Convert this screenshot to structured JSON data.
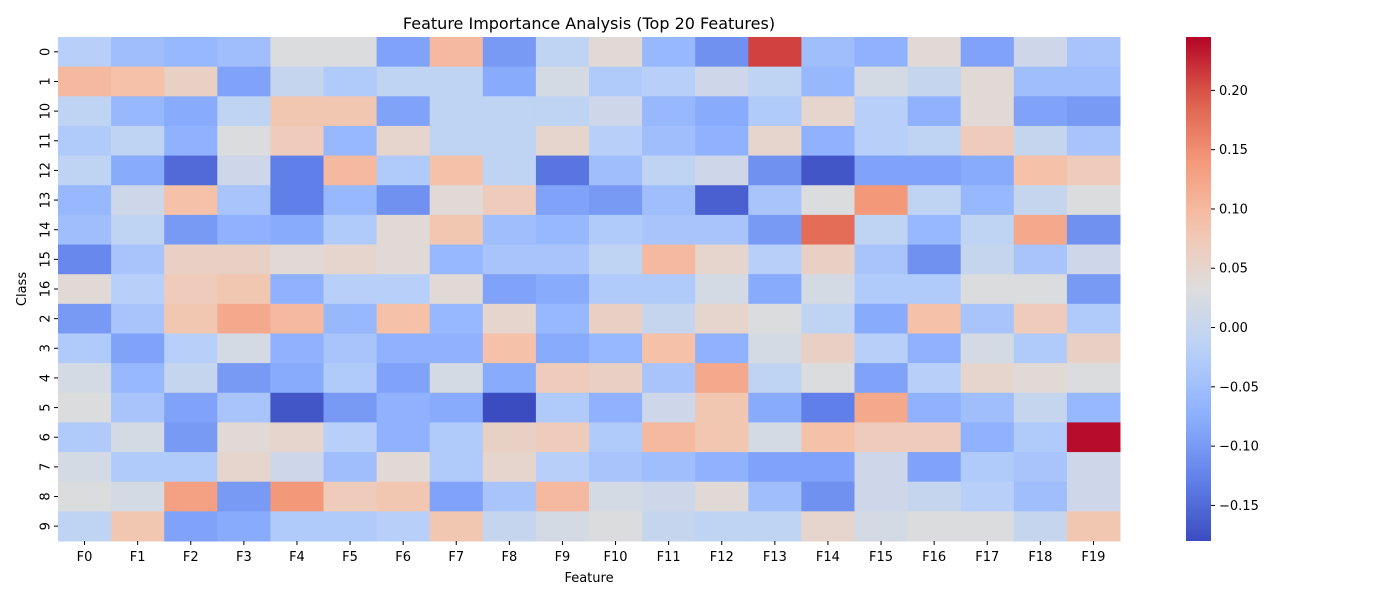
{
  "chart_data": {
    "type": "heatmap",
    "title": "Feature Importance Analysis (Top 20 Features)",
    "xlabel": "Feature",
    "ylabel": "Class",
    "x_categories": [
      "F0",
      "F1",
      "F2",
      "F3",
      "F4",
      "F5",
      "F6",
      "F7",
      "F8",
      "F9",
      "F10",
      "F11",
      "F12",
      "F13",
      "F14",
      "F15",
      "F16",
      "F17",
      "F18",
      "F19"
    ],
    "y_categories": [
      "0",
      "1",
      "10",
      "11",
      "12",
      "13",
      "14",
      "15",
      "16",
      "2",
      "3",
      "4",
      "5",
      "6",
      "7",
      "8",
      "9"
    ],
    "values": [
      [
        -0.02,
        -0.05,
        -0.06,
        -0.05,
        0.03,
        0.03,
        -0.09,
        0.1,
        -0.1,
        -0.01,
        0.04,
        -0.06,
        -0.11,
        0.21,
        -0.05,
        -0.07,
        0.04,
        -0.09,
        0.01,
        -0.04
      ],
      [
        0.1,
        0.09,
        0.06,
        -0.09,
        0.0,
        -0.03,
        -0.01,
        -0.01,
        -0.08,
        0.02,
        -0.03,
        -0.02,
        0.01,
        -0.01,
        -0.06,
        0.02,
        0.0,
        0.04,
        -0.05,
        -0.05
      ],
      [
        -0.01,
        -0.06,
        -0.08,
        -0.01,
        0.08,
        0.08,
        -0.09,
        -0.01,
        -0.01,
        -0.01,
        0.01,
        -0.06,
        -0.08,
        -0.03,
        0.05,
        -0.02,
        -0.07,
        0.04,
        -0.09,
        -0.1
      ],
      [
        -0.03,
        -0.01,
        -0.07,
        0.03,
        0.07,
        -0.06,
        0.05,
        -0.01,
        -0.01,
        0.05,
        -0.02,
        -0.05,
        -0.07,
        0.05,
        -0.07,
        -0.02,
        -0.01,
        0.07,
        0.0,
        -0.04
      ],
      [
        -0.01,
        -0.08,
        -0.15,
        0.01,
        -0.13,
        0.1,
        -0.03,
        0.09,
        -0.01,
        -0.14,
        -0.05,
        -0.01,
        0.01,
        -0.11,
        -0.17,
        -0.09,
        -0.09,
        -0.08,
        0.09,
        0.07
      ],
      [
        -0.06,
        0.01,
        0.09,
        -0.04,
        -0.13,
        -0.06,
        -0.11,
        0.04,
        0.07,
        -0.09,
        -0.1,
        -0.05,
        -0.16,
        -0.04,
        0.03,
        0.14,
        -0.01,
        -0.06,
        0.0,
        0.03
      ],
      [
        -0.05,
        -0.01,
        -0.1,
        -0.07,
        -0.08,
        -0.03,
        0.04,
        0.08,
        -0.05,
        -0.06,
        -0.03,
        -0.04,
        -0.04,
        -0.1,
        0.18,
        -0.01,
        -0.06,
        -0.01,
        0.12,
        -0.11
      ],
      [
        -0.12,
        -0.04,
        0.06,
        0.06,
        0.04,
        0.05,
        0.04,
        -0.06,
        -0.04,
        -0.04,
        -0.01,
        0.1,
        0.05,
        -0.02,
        0.06,
        -0.04,
        -0.11,
        0.0,
        -0.04,
        0.01
      ],
      [
        0.04,
        -0.02,
        0.07,
        0.08,
        -0.07,
        -0.02,
        -0.02,
        0.04,
        -0.09,
        -0.08,
        -0.03,
        -0.03,
        0.02,
        -0.08,
        0.02,
        -0.03,
        -0.03,
        0.03,
        0.03,
        -0.1
      ],
      [
        -0.1,
        -0.04,
        0.08,
        0.12,
        0.1,
        -0.06,
        0.09,
        -0.06,
        0.05,
        -0.06,
        0.06,
        0.0,
        0.05,
        0.03,
        -0.01,
        -0.08,
        0.09,
        -0.04,
        0.07,
        -0.03
      ],
      [
        -0.03,
        -0.09,
        -0.02,
        0.02,
        -0.07,
        -0.04,
        -0.07,
        -0.07,
        0.09,
        -0.08,
        -0.06,
        0.09,
        -0.07,
        0.02,
        0.06,
        -0.02,
        -0.07,
        0.02,
        -0.03,
        0.06
      ],
      [
        0.02,
        -0.06,
        0.0,
        -0.1,
        -0.08,
        -0.03,
        -0.09,
        0.02,
        -0.08,
        0.07,
        0.06,
        -0.04,
        0.12,
        -0.01,
        0.03,
        -0.09,
        -0.02,
        0.05,
        0.04,
        0.03
      ],
      [
        0.03,
        -0.04,
        -0.09,
        -0.04,
        -0.17,
        -0.1,
        -0.07,
        -0.08,
        -0.18,
        -0.03,
        -0.07,
        0.01,
        0.08,
        -0.08,
        -0.13,
        0.12,
        -0.07,
        -0.05,
        0.0,
        -0.06
      ],
      [
        -0.03,
        0.02,
        -0.1,
        0.04,
        0.05,
        -0.02,
        -0.07,
        -0.03,
        0.06,
        0.07,
        -0.03,
        0.1,
        0.08,
        0.02,
        0.09,
        0.07,
        0.07,
        -0.07,
        -0.03,
        0.24
      ],
      [
        0.02,
        -0.03,
        -0.03,
        0.05,
        0.01,
        -0.05,
        0.04,
        -0.03,
        0.05,
        -0.02,
        -0.04,
        -0.05,
        -0.07,
        -0.09,
        -0.09,
        0.01,
        -0.09,
        -0.03,
        -0.04,
        0.01
      ],
      [
        0.03,
        0.02,
        0.13,
        -0.1,
        0.14,
        0.07,
        0.08,
        -0.09,
        -0.04,
        0.1,
        0.02,
        0.01,
        0.04,
        -0.05,
        -0.11,
        0.01,
        0.0,
        -0.02,
        -0.05,
        0.01
      ],
      [
        -0.01,
        0.08,
        -0.09,
        -0.08,
        -0.03,
        -0.03,
        -0.02,
        0.08,
        0.0,
        0.02,
        0.03,
        0.0,
        -0.01,
        -0.01,
        0.05,
        0.02,
        0.03,
        0.03,
        0.0,
        0.08
      ]
    ],
    "colorbar": {
      "vmin": -0.18,
      "vmax": 0.245,
      "ticks": [
        -0.15,
        -0.1,
        -0.05,
        0.0,
        0.05,
        0.1,
        0.15,
        0.2
      ],
      "tick_labels": [
        "−0.15",
        "−0.10",
        "−0.05",
        "0.00",
        "0.05",
        "0.10",
        "0.15",
        "0.20"
      ]
    },
    "colormap": "coolwarm"
  }
}
